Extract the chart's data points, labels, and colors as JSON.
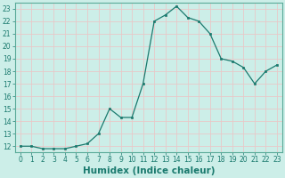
{
  "x": [
    0,
    1,
    2,
    3,
    4,
    5,
    6,
    7,
    8,
    9,
    10,
    11,
    12,
    13,
    14,
    15,
    16,
    17,
    18,
    19,
    20,
    21,
    22,
    23
  ],
  "y": [
    12.0,
    12.0,
    11.8,
    11.8,
    11.8,
    12.0,
    12.2,
    13.0,
    15.0,
    14.3,
    14.3,
    17.0,
    22.0,
    22.5,
    23.2,
    22.3,
    22.0,
    21.0,
    19.0,
    18.8,
    18.3,
    17.0,
    18.0,
    18.5
  ],
  "xlabel": "Humidex (Indice chaleur)",
  "ylim_min": 11.5,
  "ylim_max": 23.5,
  "xlim_min": -0.5,
  "xlim_max": 23.5,
  "yticks": [
    12,
    13,
    14,
    15,
    16,
    17,
    18,
    19,
    20,
    21,
    22,
    23
  ],
  "xticks": [
    0,
    1,
    2,
    3,
    4,
    5,
    6,
    7,
    8,
    9,
    10,
    11,
    12,
    13,
    14,
    15,
    16,
    17,
    18,
    19,
    20,
    21,
    22,
    23
  ],
  "line_color": "#1a7a6e",
  "marker_color": "#1a7a6e",
  "bg_color": "#cceee8",
  "grid_color": "#e8c8c8",
  "tick_fontsize": 5.5,
  "xlabel_fontsize": 7.5,
  "spine_color": "#5aaa99"
}
